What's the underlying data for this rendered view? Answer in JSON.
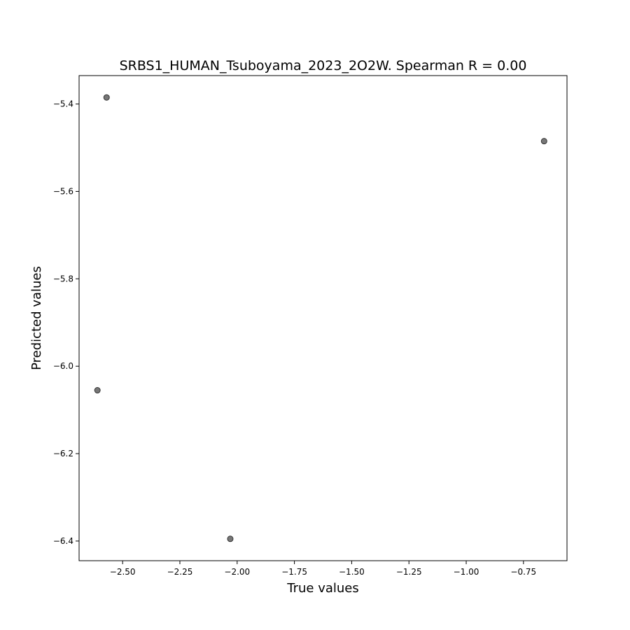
{
  "chart_data": {
    "type": "scatter",
    "title": "SRBS1_HUMAN_Tsuboyama_2023_2O2W. Spearman R = 0.00",
    "xlabel": "True values",
    "ylabel": "Predicted values",
    "xlim": [
      -2.69,
      -0.56
    ],
    "ylim": [
      -6.445,
      -5.335
    ],
    "xticks": [
      -2.5,
      -2.25,
      -2.0,
      -1.75,
      -1.5,
      -1.25,
      -1.0,
      -0.75
    ],
    "xtick_labels": [
      "−2.50",
      "−2.25",
      "−2.00",
      "−1.75",
      "−1.50",
      "−1.25",
      "−1.00",
      "−0.75"
    ],
    "yticks": [
      -5.4,
      -5.6,
      -5.8,
      -6.0,
      -6.2,
      -6.4
    ],
    "ytick_labels": [
      "−5.4",
      "−5.6",
      "−5.8",
      "−6.0",
      "−6.2",
      "−6.4"
    ],
    "grid": false,
    "point_color": "#555555",
    "points": [
      {
        "x": -2.57,
        "y": -5.385
      },
      {
        "x": -0.66,
        "y": -5.485
      },
      {
        "x": -2.61,
        "y": -6.055
      },
      {
        "x": -2.03,
        "y": -6.395
      }
    ]
  }
}
